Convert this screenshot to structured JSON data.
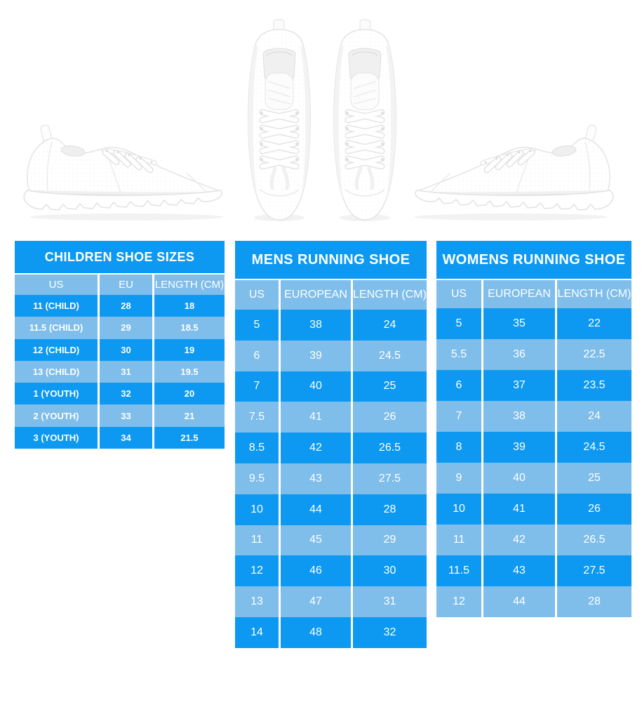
{
  "colors": {
    "bright_blue": "#0D99F1",
    "light_blue": "#7FBDEA",
    "table_text": "#FFFFFF",
    "background": "#FFFFFF"
  },
  "tables": {
    "children": {
      "title": "CHILDREN SHOE SIZES",
      "headers": [
        "US",
        "EU",
        "LENGTH (CM)"
      ],
      "rows": [
        [
          "11 (CHILD)",
          "28",
          "18"
        ],
        [
          "11.5 (CHILD)",
          "29",
          "18.5"
        ],
        [
          "12 (CHILD)",
          "30",
          "19"
        ],
        [
          "13 (CHILD)",
          "31",
          "19.5"
        ],
        [
          "1 (YOUTH)",
          "32",
          "20"
        ],
        [
          "2 (YOUTH)",
          "33",
          "21"
        ],
        [
          "3 (YOUTH)",
          "34",
          "21.5"
        ]
      ]
    },
    "mens": {
      "title": "MENS RUNNING SHOE",
      "headers": [
        "US",
        "EUROPEAN",
        "LENGTH (CM)"
      ],
      "rows": [
        [
          "5",
          "38",
          "24"
        ],
        [
          "6",
          "39",
          "24.5"
        ],
        [
          "7",
          "40",
          "25"
        ],
        [
          "7.5",
          "41",
          "26"
        ],
        [
          "8.5",
          "42",
          "26.5"
        ],
        [
          "9.5",
          "43",
          "27.5"
        ],
        [
          "10",
          "44",
          "28"
        ],
        [
          "11",
          "45",
          "29"
        ],
        [
          "12",
          "46",
          "30"
        ],
        [
          "13",
          "47",
          "31"
        ],
        [
          "14",
          "48",
          "32"
        ]
      ]
    },
    "womens": {
      "title": "WOMENS RUNNING SHOE",
      "headers": [
        "US",
        "EUROPEAN",
        "LENGTH (CM)"
      ],
      "rows": [
        [
          "5",
          "35",
          "22"
        ],
        [
          "5.5",
          "36",
          "22.5"
        ],
        [
          "6",
          "37",
          "23.5"
        ],
        [
          "7",
          "38",
          "24"
        ],
        [
          "8",
          "39",
          "24.5"
        ],
        [
          "9",
          "40",
          "25"
        ],
        [
          "10",
          "41",
          "26"
        ],
        [
          "11",
          "42",
          "26.5"
        ],
        [
          "11.5",
          "43",
          "27.5"
        ],
        [
          "12",
          "44",
          "28"
        ]
      ]
    }
  }
}
